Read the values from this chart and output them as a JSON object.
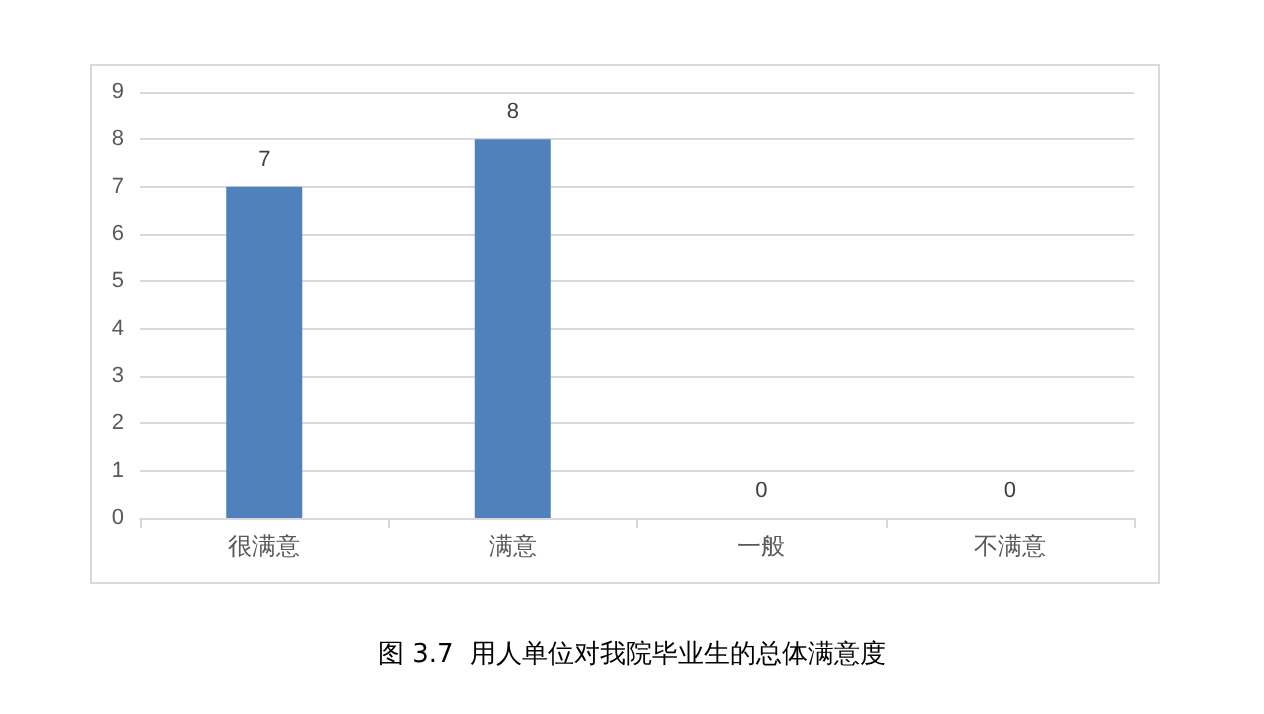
{
  "chart_data": {
    "type": "bar",
    "title": "图 3.7  用人单位对我院毕业生的总体满意度",
    "categories": [
      "很满意",
      "满意",
      "一般",
      "不满意"
    ],
    "values": [
      7,
      8,
      0,
      0
    ],
    "color": "#4f81bd",
    "ylim": [
      0,
      9
    ],
    "yticks": [
      0,
      1,
      2,
      3,
      4,
      5,
      6,
      7,
      8,
      9
    ],
    "grid": "y",
    "data_labels": true
  }
}
